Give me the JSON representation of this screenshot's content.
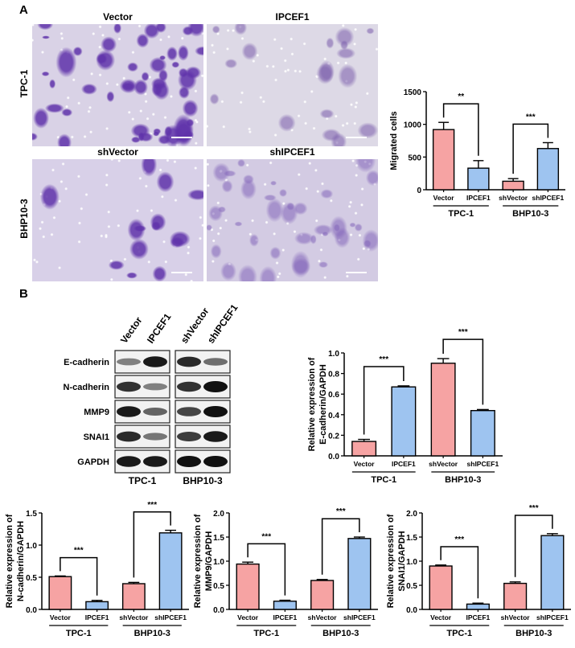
{
  "panel_a": {
    "label": "A",
    "image_titles": [
      "Vector",
      "IPCEF1",
      "shVector",
      "shIPCEF1"
    ],
    "row_labels": [
      "TPC-1",
      "BHP10-3"
    ]
  },
  "panel_b": {
    "label": "B",
    "blot": {
      "lanes": [
        "Vector",
        "IPCEF1",
        "shVector",
        "shIPCEF1"
      ],
      "groups": [
        "TPC-1",
        "BHP10-3"
      ],
      "rows": [
        {
          "protein": "E-cadherin",
          "band_intensity": [
            0.35,
            0.95,
            0.85,
            0.45
          ]
        },
        {
          "protein": "N-cadherin",
          "band_intensity": [
            0.8,
            0.35,
            0.8,
            1.0
          ]
        },
        {
          "protein": "MMP9",
          "band_intensity": [
            0.95,
            0.5,
            0.7,
            1.0
          ]
        },
        {
          "protein": "SNAI1",
          "band_intensity": [
            0.85,
            0.4,
            0.75,
            0.95
          ]
        },
        {
          "protein": "GAPDH",
          "band_intensity": [
            0.95,
            0.95,
            1.0,
            1.0
          ]
        }
      ]
    }
  },
  "colors": {
    "control": "#f6a3a3",
    "treatment": "#9ec4f0"
  },
  "chart_data": [
    {
      "type": "bar",
      "ylabel": [
        "Migrated cells"
      ],
      "ylim": [
        0,
        1500
      ],
      "yticks": [
        "0",
        "500",
        "1000",
        "1500"
      ],
      "ytick_values": [
        0,
        500,
        1000,
        1500
      ],
      "categories": [
        "Vector",
        "IPCEF1",
        "shVector",
        "shIPCEF1"
      ],
      "groups": [
        "TPC-1",
        "BHP10-3"
      ],
      "values": [
        920,
        330,
        130,
        630
      ],
      "errors": [
        110,
        115,
        40,
        90
      ],
      "significance": [
        "**",
        "***"
      ]
    },
    {
      "type": "bar",
      "ylabel": [
        "Relative expression of",
        "E-cadherin/GAPDH"
      ],
      "ylim": [
        0,
        1.0
      ],
      "yticks": [
        "0.0",
        "0.2",
        "0.4",
        "0.6",
        "0.8",
        "1.0"
      ],
      "ytick_values": [
        0,
        0.2,
        0.4,
        0.6,
        0.8,
        1.0
      ],
      "categories": [
        "Vector",
        "IPCEF1",
        "shVector",
        "shIPCEF1"
      ],
      "groups": [
        "TPC-1",
        "BHP10-3"
      ],
      "values": [
        0.14,
        0.67,
        0.9,
        0.44
      ],
      "errors": [
        0.02,
        0.01,
        0.045,
        0.01
      ],
      "significance": [
        "***",
        "***"
      ]
    },
    {
      "type": "bar",
      "ylabel": [
        "Relative expression of",
        "N-cadherin/GAPDH"
      ],
      "ylim": [
        0,
        1.5
      ],
      "yticks": [
        "0.0",
        "0.5",
        "1.0",
        "1.5"
      ],
      "ytick_values": [
        0,
        0.5,
        1.0,
        1.5
      ],
      "categories": [
        "Vector",
        "IPCEF1",
        "shVector",
        "shIPCEF1"
      ],
      "groups": [
        "TPC-1",
        "BHP10-3"
      ],
      "values": [
        0.51,
        0.12,
        0.4,
        1.19
      ],
      "errors": [
        0.01,
        0.02,
        0.02,
        0.04
      ],
      "significance": [
        "***",
        "***"
      ]
    },
    {
      "type": "bar",
      "ylabel": [
        "Relative expression of",
        "MMP9/GAPDH"
      ],
      "ylim": [
        0,
        2.0
      ],
      "yticks": [
        "0.0",
        "0.5",
        "1.0",
        "1.5",
        "2.0"
      ],
      "ytick_values": [
        0,
        0.5,
        1.0,
        1.5,
        2.0
      ],
      "categories": [
        "Vector",
        "IPCEF1",
        "shVector",
        "shIPCEF1"
      ],
      "groups": [
        "TPC-1",
        "BHP10-3"
      ],
      "values": [
        0.94,
        0.17,
        0.6,
        1.47
      ],
      "errors": [
        0.04,
        0.02,
        0.02,
        0.03
      ],
      "significance": [
        "***",
        "***"
      ]
    },
    {
      "type": "bar",
      "ylabel": [
        "Relative expression of",
        "SNAI1/GAPDH"
      ],
      "ylim": [
        0,
        2.0
      ],
      "yticks": [
        "0.0",
        "0.5",
        "1.0",
        "1.5",
        "2.0"
      ],
      "ytick_values": [
        0,
        0.5,
        1.0,
        1.5,
        2.0
      ],
      "categories": [
        "Vector",
        "IPCEF1",
        "shVector",
        "shIPCEF1"
      ],
      "groups": [
        "TPC-1",
        "BHP10-3"
      ],
      "values": [
        0.9,
        0.11,
        0.54,
        1.53
      ],
      "errors": [
        0.02,
        0.02,
        0.03,
        0.04
      ],
      "significance": [
        "***",
        "***"
      ]
    }
  ]
}
